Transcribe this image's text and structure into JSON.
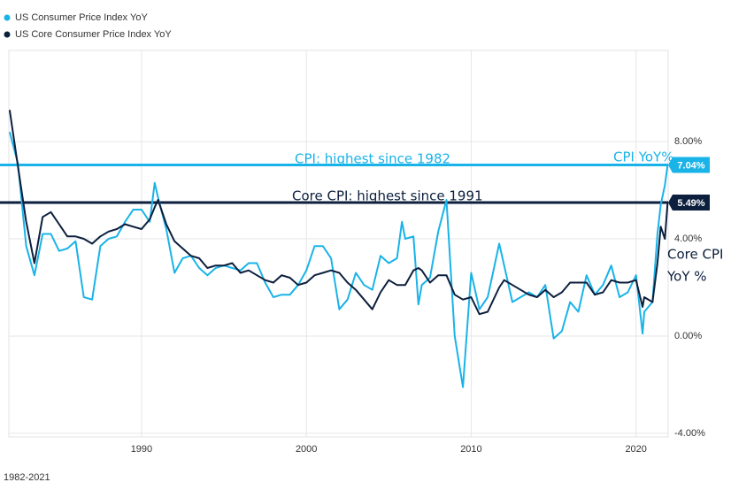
{
  "chart_data": {
    "type": "line",
    "x": [
      1982,
      1982.5,
      1983,
      1983.5,
      1984,
      1984.5,
      1985,
      1985.5,
      1986,
      1986.5,
      1987,
      1987.5,
      1988,
      1988.5,
      1989,
      1989.5,
      1990,
      1990.5,
      1990.8,
      1991,
      1991.5,
      1992,
      1992.5,
      1993,
      1993.5,
      1994,
      1994.5,
      1995,
      1995.5,
      1996,
      1996.5,
      1997,
      1997.5,
      1998,
      1998.5,
      1999,
      1999.5,
      2000,
      2000.5,
      2001,
      2001.5,
      2002,
      2002.5,
      2003,
      2003.5,
      2004,
      2004.5,
      2005,
      2005.5,
      2005.8,
      2006,
      2006.5,
      2006.8,
      2007,
      2007.5,
      2008,
      2008.5,
      2009,
      2009.5,
      2010,
      2010.5,
      2011,
      2011.7,
      2012,
      2012.5,
      2013,
      2013.5,
      2014,
      2014.5,
      2015,
      2015.5,
      2016,
      2016.5,
      2017,
      2017.5,
      2018,
      2018.5,
      2019,
      2019.5,
      2020,
      2020.4,
      2020.5,
      2021,
      2021.3,
      2021.5,
      2021.75,
      2021.92
    ],
    "series": [
      {
        "name": "US Consumer Price Index YoY",
        "color": "#19b3e8",
        "values": [
          8.4,
          7.1,
          3.7,
          2.5,
          4.2,
          4.2,
          3.5,
          3.6,
          3.9,
          1.6,
          1.5,
          3.7,
          4.0,
          4.1,
          4.7,
          5.2,
          5.2,
          4.7,
          6.3,
          5.7,
          4.4,
          2.6,
          3.2,
          3.3,
          2.8,
          2.5,
          2.8,
          2.9,
          2.8,
          2.7,
          3.0,
          3.0,
          2.2,
          1.6,
          1.7,
          1.7,
          2.1,
          2.7,
          3.7,
          3.7,
          3.2,
          1.1,
          1.5,
          2.6,
          2.1,
          1.9,
          3.3,
          3.0,
          3.2,
          4.7,
          4.0,
          4.1,
          1.3,
          2.1,
          2.4,
          4.3,
          5.6,
          0.0,
          -2.1,
          2.6,
          1.1,
          1.6,
          3.8,
          2.9,
          1.4,
          1.6,
          1.8,
          1.6,
          2.1,
          -0.1,
          0.2,
          1.4,
          1.0,
          2.5,
          1.7,
          2.1,
          2.9,
          1.6,
          1.8,
          2.5,
          0.1,
          1.0,
          1.4,
          4.2,
          5.4,
          6.2,
          7.04
        ]
      },
      {
        "name": "US Core Consumer Price Index YoY",
        "color": "#0c1f3d",
        "values": [
          9.3,
          7.0,
          4.7,
          3.0,
          4.9,
          5.1,
          4.6,
          4.1,
          4.1,
          4.0,
          3.8,
          4.1,
          4.3,
          4.4,
          4.6,
          4.5,
          4.4,
          4.8,
          5.3,
          5.6,
          4.6,
          3.9,
          3.6,
          3.3,
          3.2,
          2.8,
          2.9,
          2.9,
          3.0,
          2.6,
          2.7,
          2.5,
          2.3,
          2.2,
          2.5,
          2.4,
          2.1,
          2.2,
          2.5,
          2.6,
          2.7,
          2.6,
          2.2,
          1.9,
          1.5,
          1.1,
          1.8,
          2.3,
          2.1,
          2.1,
          2.1,
          2.7,
          2.8,
          2.7,
          2.2,
          2.5,
          2.5,
          1.7,
          1.5,
          1.6,
          0.9,
          1.0,
          2.0,
          2.3,
          2.1,
          1.9,
          1.7,
          1.6,
          1.9,
          1.6,
          1.8,
          2.2,
          2.2,
          2.2,
          1.7,
          1.8,
          2.3,
          2.2,
          2.2,
          2.3,
          1.2,
          1.6,
          1.4,
          3.0,
          4.5,
          4.0,
          5.49
        ]
      }
    ],
    "xlim": [
      1981.95,
      2021.95
    ],
    "xticks": [
      1990,
      2000,
      2010,
      2020
    ],
    "ylim": [
      -4.15,
      11.75
    ],
    "yticks": [
      {
        "value": -4,
        "label": "-4.00%"
      },
      {
        "value": 0,
        "label": "0.00%"
      },
      {
        "value": 4,
        "label": "4.00%"
      },
      {
        "value": 8,
        "label": "8.00%"
      }
    ],
    "grid": true,
    "reference_lines": [
      {
        "value": 7.04,
        "label": "7.04%",
        "color": "#19b3e8"
      },
      {
        "value": 5.49,
        "label": "5.49%",
        "color": "#0c1f3d"
      }
    ],
    "annotations": [
      {
        "text": "CPI: highest since 1982",
        "color": "#19b3e8"
      },
      {
        "text": "Core CPI: highest since 1991",
        "color": "#0c1f3d"
      },
      {
        "text": "CPI YoY%",
        "color": "#19b3e8"
      },
      {
        "text": "Core CPI",
        "color": "#0c1f3d"
      },
      {
        "text": "YoY %",
        "color": "#0c1f3d"
      }
    ],
    "footer": "1982-2021"
  }
}
